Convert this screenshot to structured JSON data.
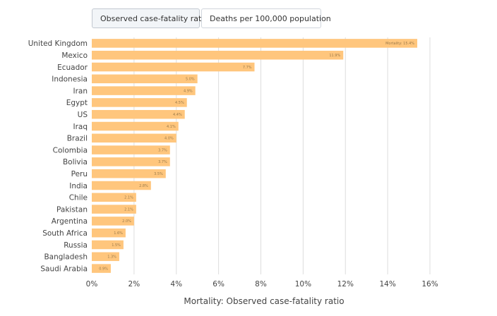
{
  "tabs": [
    {
      "label": "Observed case-fatality ratio",
      "active": true
    },
    {
      "label": "Deaths per 100,000 population",
      "active": false
    }
  ],
  "colors": {
    "bar": "#ffc67d",
    "grid": "#dddddd"
  },
  "chart_data": {
    "type": "bar",
    "orientation": "horizontal",
    "xlabel": "Mortality: Observed case-fatality ratio",
    "xlim": [
      0,
      16
    ],
    "xticks": [
      "0%",
      "2%",
      "4%",
      "6%",
      "8%",
      "10%",
      "12%",
      "14%",
      "16%"
    ],
    "grid": true,
    "categories": [
      "United Kingdom",
      "Mexico",
      "Ecuador",
      "Indonesia",
      "Iran",
      "Egypt",
      "US",
      "Iraq",
      "Brazil",
      "Colombia",
      "Bolivia",
      "Peru",
      "India",
      "Chile",
      "Pakistan",
      "Argentina",
      "South Africa",
      "Russia",
      "Bangladesh",
      "Saudi Arabia"
    ],
    "values": [
      15.4,
      11.9,
      7.7,
      5.0,
      4.9,
      4.5,
      4.4,
      4.1,
      4.0,
      3.7,
      3.7,
      3.5,
      2.8,
      2.1,
      2.1,
      2.0,
      1.6,
      1.5,
      1.3,
      0.9
    ],
    "data_labels": [
      "Mortality: 15.4%",
      "11.9%",
      "7.7%",
      "5.0%",
      "4.9%",
      "4.5%",
      "4.4%",
      "4.1%",
      "4.0%",
      "3.7%",
      "3.7%",
      "3.5%",
      "2.8%",
      "2.1%",
      "2.1%",
      "2.0%",
      "1.6%",
      "1.5%",
      "1.3%",
      "0.9%"
    ]
  }
}
